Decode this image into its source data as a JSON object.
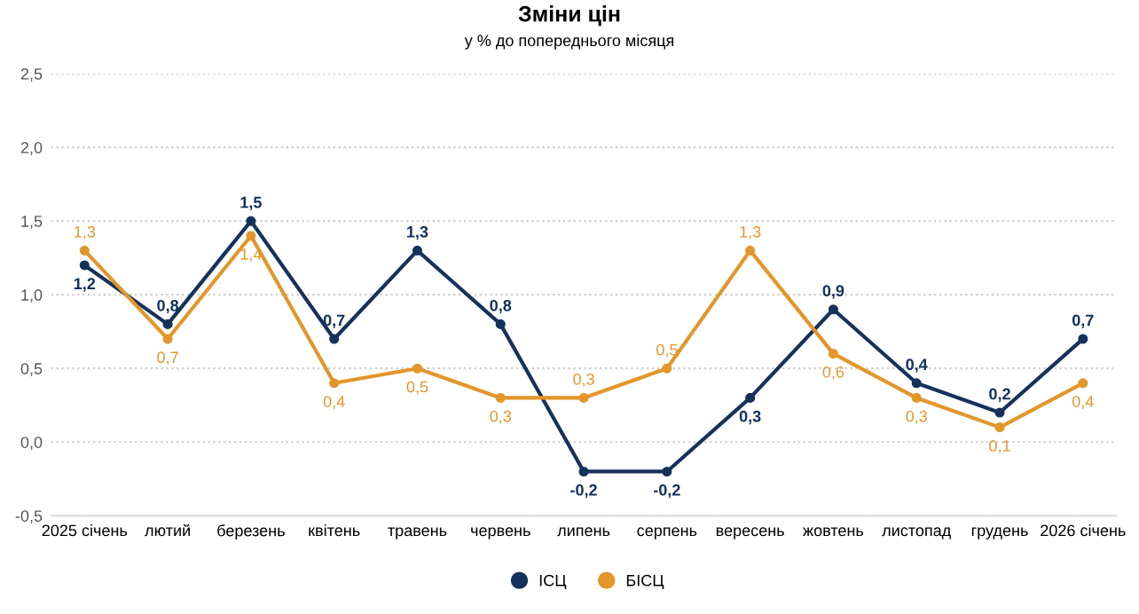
{
  "chart_data": {
    "type": "line",
    "title": "Зміни цін",
    "subtitle": "у % до попереднього місяця",
    "categories": [
      "2025 січень",
      "лютий",
      "березень",
      "квітень",
      "травень",
      "червень",
      "липень",
      "серпень",
      "вересень",
      "жовтень",
      "листопад",
      "грудень",
      "2026 січень"
    ],
    "series": [
      {
        "name": "ІСЦ",
        "color": "#15325b",
        "values": [
          1.2,
          0.8,
          1.5,
          0.7,
          1.3,
          0.8,
          -0.2,
          -0.2,
          0.3,
          0.9,
          0.4,
          0.2,
          0.7
        ],
        "value_labels": [
          "1,2",
          "0,8",
          "1,5",
          "0,7",
          "1,3",
          "0,8",
          "-0,2",
          "-0,2",
          "0,3",
          "0,9",
          "0,4",
          "0,2",
          "0,7"
        ]
      },
      {
        "name": "БІСЦ",
        "color": "#e3962a",
        "values": [
          1.3,
          0.7,
          1.4,
          0.4,
          0.5,
          0.3,
          0.3,
          0.5,
          1.3,
          0.6,
          0.3,
          0.1,
          0.4
        ],
        "value_labels": [
          "1,3",
          "0,7",
          "1,4",
          "0,4",
          "0,5",
          "0,3",
          "0,3",
          "0,5",
          "1,3",
          "0,6",
          "0,3",
          "0,1",
          "0,4"
        ]
      }
    ],
    "ylim": [
      -0.5,
      2.5
    ],
    "yticks": [
      {
        "value": -0.5,
        "label": "-0,5"
      },
      {
        "value": 0,
        "label": "0,0"
      },
      {
        "value": 0.5,
        "label": "0,5"
      },
      {
        "value": 1.0,
        "label": "1,0"
      },
      {
        "value": 1.5,
        "label": "1,5"
      },
      {
        "value": 2.0,
        "label": "2,0"
      },
      {
        "value": 2.5,
        "label": "2,5"
      }
    ],
    "grid": "y",
    "legend": "bottom",
    "marker": "circle",
    "line_style": "solid"
  }
}
